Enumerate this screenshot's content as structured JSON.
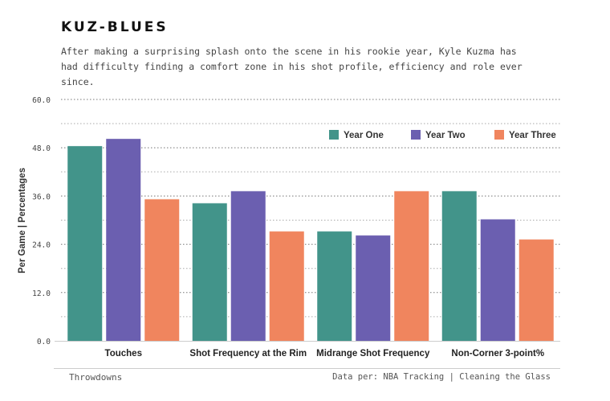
{
  "title": "KUZ-BLUES",
  "subtitle": "After making a surprising splash onto the scene in his rookie year, Kyle Kuzma has had difficulty finding a comfort zone in his shot profile, efficiency and role ever since.",
  "footer": {
    "left": "Throwdowns",
    "right": "Data per: NBA Tracking | Cleaning the Glass"
  },
  "chart_data": {
    "type": "bar",
    "ylabel": "Per Game | Percentages",
    "xlabel": "",
    "ylim": [
      0,
      60
    ],
    "yticks": [
      0,
      12,
      24,
      36,
      48,
      60
    ],
    "ytick_labels": [
      "0.0",
      "12.0",
      "24.0",
      "36.0",
      "48.0",
      "60.0"
    ],
    "grid": true,
    "legend_position": "top-right",
    "categories": [
      "Touches",
      "Shot Frequency at the Rim",
      "Midrange Shot Frequency",
      "Non-Corner 3-point%"
    ],
    "series": [
      {
        "name": "Year One",
        "color": "#42948a",
        "values": [
          48.4,
          34.2,
          27.2,
          37.2
        ]
      },
      {
        "name": "Year Two",
        "color": "#6b5fb0",
        "values": [
          50.2,
          37.2,
          26.2,
          30.2
        ]
      },
      {
        "name": "Year Three",
        "color": "#f0855e",
        "values": [
          35.2,
          27.2,
          37.2,
          25.2
        ]
      }
    ]
  }
}
